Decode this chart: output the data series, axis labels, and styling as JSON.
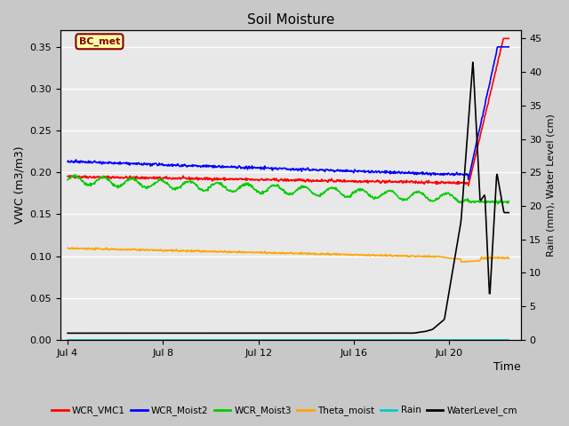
{
  "title": "Soil Moisture",
  "ylabel_left": "VWC (m3/m3)",
  "ylabel_right": "Rain (mm), Water Level (cm)",
  "xlabel": "Time",
  "ylim_left": [
    0.0,
    0.37
  ],
  "ylim_right": [
    0.0,
    46.25
  ],
  "x_tick_labels": [
    "Jul 4",
    "Jul 8",
    "Jul 12",
    "Jul 16",
    "Jul 20"
  ],
  "x_tick_positions": [
    0,
    4,
    8,
    12,
    16
  ],
  "fig_facecolor": "#c8c8c8",
  "plot_facecolor": "#e8e8e8",
  "annotation_text": "BC_met",
  "annotation_color": "#8b0000",
  "annotation_bg": "#ffffaa",
  "grid_color": "#ffffff",
  "series": {
    "WCR_VMC1": {
      "color": "#ff0000",
      "lw": 1.2
    },
    "WCR_Moist2": {
      "color": "#0000ff",
      "lw": 1.2
    },
    "WCR_Moist3": {
      "color": "#00cc00",
      "lw": 1.2
    },
    "Theta_moist": {
      "color": "#ffa500",
      "lw": 1.2
    },
    "Rain": {
      "color": "#00cccc",
      "lw": 1.2
    },
    "WaterLevel_cm": {
      "color": "#000000",
      "lw": 1.2
    }
  },
  "legend_labels": [
    "WCR_VMC1",
    "WCR_Moist2",
    "WCR_Moist3",
    "Theta_moist",
    "Rain",
    "WaterLevel_cm"
  ],
  "legend_colors": [
    "#ff0000",
    "#0000ff",
    "#00cc00",
    "#ffa500",
    "#00cccc",
    "#000000"
  ]
}
